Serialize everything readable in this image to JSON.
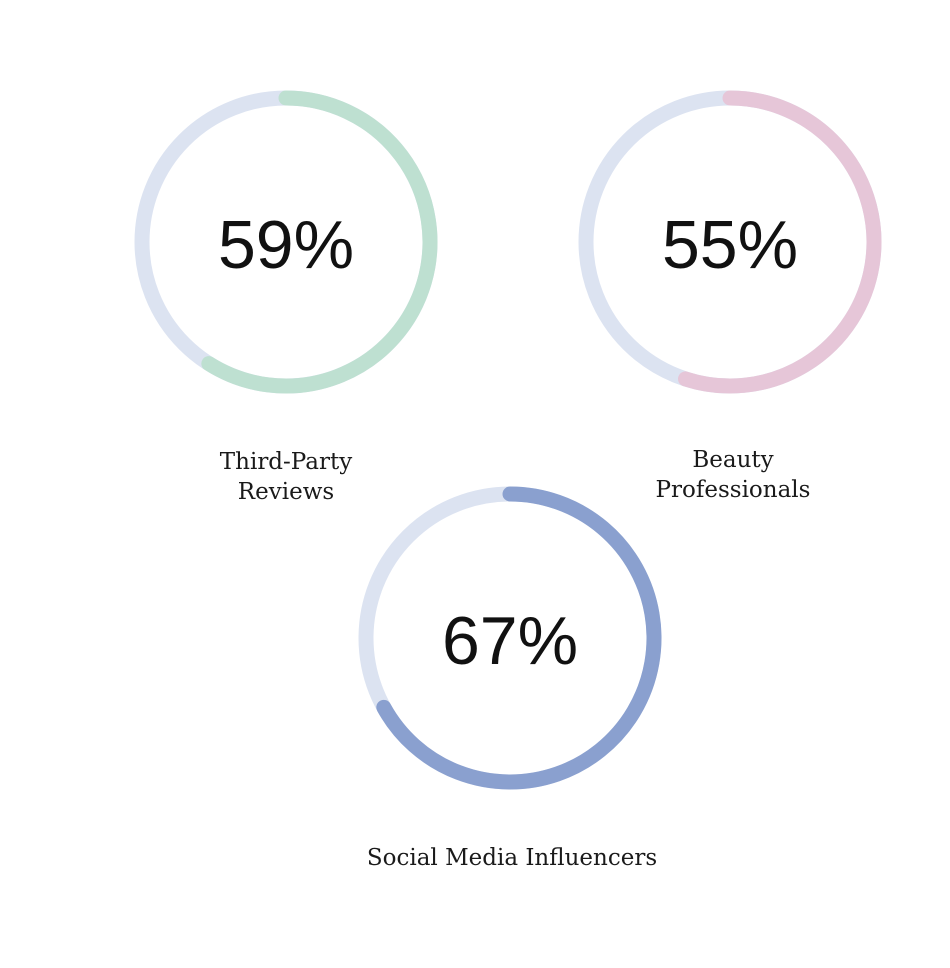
{
  "chart_data": {
    "type": "donut",
    "items": [
      {
        "value": 59,
        "value_label": "59%",
        "label_lines": [
          "Third-Party",
          "Reviews"
        ],
        "color": "#BEE0D1",
        "track_color": "#DCE3F1"
      },
      {
        "value": 55,
        "value_label": "55%",
        "label_lines": [
          "Beauty",
          "Professionals"
        ],
        "color": "#E6C6D8",
        "track_color": "#DCE3F1"
      },
      {
        "value": 67,
        "value_label": "67%",
        "label_lines": [
          "Social Media Influencers"
        ],
        "color": "#8AA0CF",
        "track_color": "#DCE3F1"
      }
    ]
  }
}
